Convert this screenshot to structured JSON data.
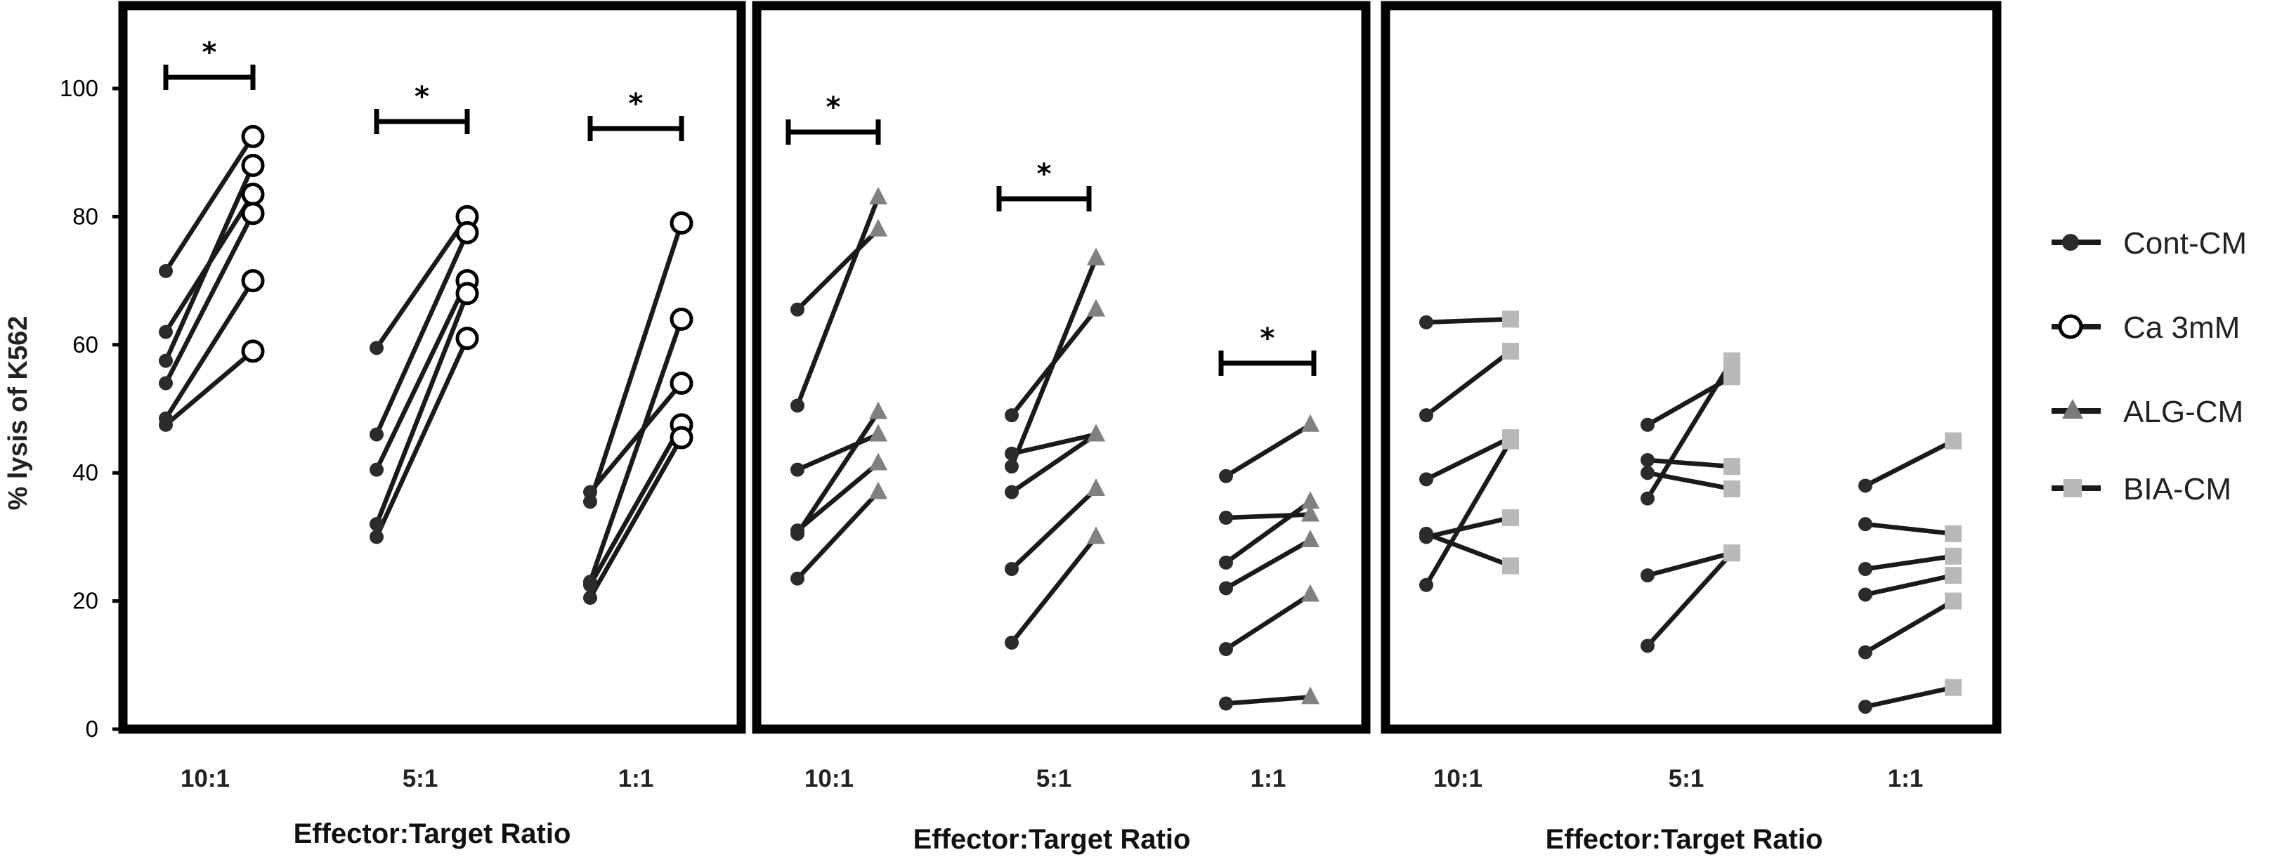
{
  "chart_data": [
    {
      "type": "line",
      "panel": 1,
      "xlabel": "Effector:Target Ratio",
      "ylabel": "% lysis of K562",
      "ylim": [
        0,
        100
      ],
      "yticks": [
        0,
        20,
        40,
        60,
        80,
        100
      ],
      "categories": [
        "10:1",
        "5:1",
        "1:1"
      ],
      "series": [
        {
          "name": "Cont-CM",
          "group": "control",
          "values": [
            [
              71.5,
              62,
              57.5,
              54,
              48.5,
              47.5
            ],
            [
              59.5,
              46,
              40.5,
              32,
              30
            ],
            [
              37,
              35.5,
              23,
              22.5,
              20.5
            ]
          ]
        },
        {
          "name": "Ca 3mM",
          "group": "treated",
          "values": [
            [
              92.5,
              88,
              83.5,
              80.5,
              70,
              59
            ],
            [
              80,
              77.5,
              70,
              68,
              61
            ],
            [
              79,
              64,
              54,
              47.5,
              45.5
            ]
          ]
        }
      ],
      "pairs": [
        [
          [
            71.5,
            92.5
          ],
          [
            62,
            83.5
          ],
          [
            57.5,
            88
          ],
          [
            54,
            80.5
          ],
          [
            48.5,
            70
          ],
          [
            47.5,
            59
          ]
        ],
        [
          [
            59.5,
            80
          ],
          [
            46,
            77.5
          ],
          [
            40.5,
            70
          ],
          [
            32,
            68
          ],
          [
            30,
            61
          ]
        ],
        [
          [
            37,
            54
          ],
          [
            35.5,
            79
          ],
          [
            23,
            64
          ],
          [
            22.5,
            47.5
          ],
          [
            20.5,
            45.5
          ]
        ]
      ],
      "significance": [
        "*",
        "*",
        "*"
      ]
    },
    {
      "type": "line",
      "panel": 2,
      "xlabel": "Effector:Target Ratio",
      "ylim": [
        0,
        100
      ],
      "categories": [
        "10:1",
        "5:1",
        "1:1"
      ],
      "series": [
        {
          "name": "Cont-CM",
          "group": "control",
          "values": [
            [
              65.5,
              50.5,
              40.5,
              31,
              23.5
            ],
            [
              49,
              43,
              41,
              37,
              25,
              13.5
            ],
            [
              39.5,
              33,
              26,
              22,
              12.5,
              4
            ]
          ]
        },
        {
          "name": "ALG-CM",
          "group": "treated",
          "values": [
            [
              83,
              78,
              49.5,
              46,
              41.5,
              37
            ],
            [
              73.5,
              65.5,
              46,
              37.5,
              30
            ],
            [
              47.5,
              35.5,
              33.5,
              29.5,
              21,
              5
            ]
          ]
        }
      ],
      "pairs": [
        [
          [
            65.5,
            78
          ],
          [
            50.5,
            83
          ],
          [
            40.5,
            46
          ],
          [
            31,
            41.5
          ],
          [
            30.5,
            49.5
          ],
          [
            23.5,
            37
          ]
        ],
        [
          [
            49,
            65.5
          ],
          [
            43,
            46
          ],
          [
            41,
            73.5
          ],
          [
            37,
            46
          ],
          [
            25,
            37.5
          ],
          [
            13.5,
            30
          ]
        ],
        [
          [
            39.5,
            47.5
          ],
          [
            33,
            33.5
          ],
          [
            26,
            35.5
          ],
          [
            22,
            29.5
          ],
          [
            12.5,
            21
          ],
          [
            4,
            5
          ]
        ]
      ],
      "significance": [
        "*",
        "*",
        "*"
      ]
    },
    {
      "type": "line",
      "panel": 3,
      "xlabel": "Effector:Target Ratio",
      "ylim": [
        0,
        100
      ],
      "categories": [
        "10:1",
        "5:1",
        "1:1"
      ],
      "series": [
        {
          "name": "Cont-CM",
          "group": "control",
          "values": [
            [
              63.5,
              49,
              39,
              30.5,
              30,
              22.5
            ],
            [
              47.5,
              42,
              40,
              36,
              24,
              13
            ],
            [
              38,
              32,
              25,
              21,
              12,
              3.5
            ]
          ]
        },
        {
          "name": "BIA-CM",
          "group": "treated",
          "values": [
            [
              64,
              59,
              45.5,
              45,
              33,
              25.5
            ],
            [
              57.5,
              55,
              41,
              37.5,
              27.5
            ],
            [
              45,
              30.5,
              27,
              24,
              20,
              6.5
            ]
          ]
        }
      ],
      "pairs": [
        [
          [
            63.5,
            64
          ],
          [
            49,
            59
          ],
          [
            39,
            45.5
          ],
          [
            30.5,
            25.5
          ],
          [
            30,
            33
          ],
          [
            22.5,
            45
          ]
        ],
        [
          [
            47.5,
            55
          ],
          [
            42,
            41
          ],
          [
            40,
            37.5
          ],
          [
            36,
            57.5
          ],
          [
            24,
            27.5
          ],
          [
            13,
            27.5
          ]
        ],
        [
          [
            38,
            45
          ],
          [
            32,
            30.5
          ],
          [
            25,
            27
          ],
          [
            21,
            24
          ],
          [
            12,
            20
          ],
          [
            3.5,
            6.5
          ]
        ]
      ],
      "significance": []
    }
  ],
  "legend": {
    "placement": "right",
    "entries": [
      {
        "label": "Cont-CM",
        "marker": "filled-circle",
        "color": "#2b2b2b"
      },
      {
        "label": "Ca 3mM",
        "marker": "open-circle",
        "color": "#000000"
      },
      {
        "label": "ALG-CM",
        "marker": "triangle",
        "color": "#7a7a7a"
      },
      {
        "label": "BIA-CM",
        "marker": "square",
        "color": "#b8b8b8"
      }
    ]
  },
  "colors": {
    "control_marker": "#2b2b2b",
    "alg_marker": "#808080",
    "bia_marker": "#b9b9b9",
    "line": "#1a1a1a",
    "frame": "#000000"
  }
}
